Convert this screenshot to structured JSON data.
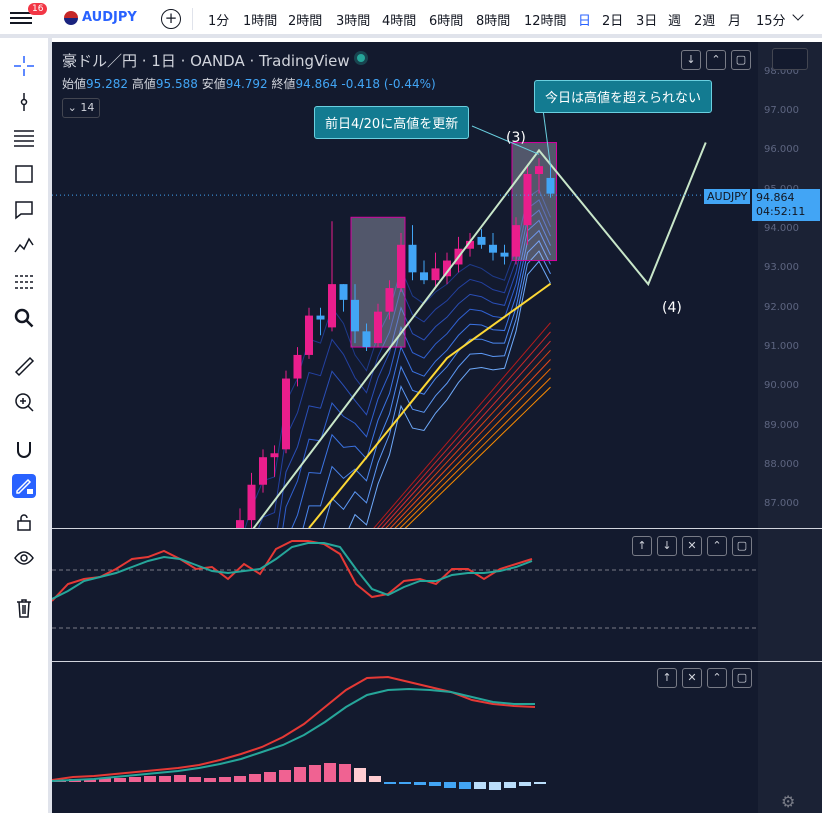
{
  "topbar": {
    "notification_count": "16",
    "symbol": "AUDJPY",
    "timeframes": [
      "1分",
      "1時間",
      "2時間",
      "3時間",
      "4時間",
      "6時間",
      "8時間",
      "12時間",
      "日",
      "2日",
      "3日",
      "週",
      "2週",
      "月",
      "15分"
    ],
    "active_timeframe": "日"
  },
  "header": {
    "title": "豪ドル／円 · 1日 · OANDA · TradingView",
    "open_label": "始値",
    "open": "95.282",
    "high_label": "高値",
    "high": "95.588",
    "low_label": "安値",
    "low": "94.792",
    "close_label": "終値",
    "close": "94.864",
    "change": "-0.418 (-0.44%)",
    "indicator_count": "14"
  },
  "annotations": {
    "callout_left": "前日4/20に高値を更新",
    "callout_right": "今日は高値を超えられない",
    "wave3": "(3)",
    "wave4": "(4)"
  },
  "price_tag": {
    "symbol": "AUDJPY",
    "price": "94.864",
    "countdown": "04:52:11"
  },
  "colors": {
    "background": "#131a2e",
    "up": "#e91e8c",
    "down": "#42a5f5",
    "accent": "#2962ff"
  },
  "chart_data": {
    "type": "candlestick",
    "ylim": [
      86.4,
      98.4
    ],
    "candles": [
      {
        "o": 86.2,
        "h": 86.9,
        "l": 85.9,
        "c": 86.6
      },
      {
        "o": 86.6,
        "h": 87.8,
        "l": 86.4,
        "c": 87.5
      },
      {
        "o": 87.5,
        "h": 88.4,
        "l": 87.3,
        "c": 88.2
      },
      {
        "o": 88.2,
        "h": 88.5,
        "l": 87.7,
        "c": 88.3
      },
      {
        "o": 88.4,
        "h": 90.4,
        "l": 88.3,
        "c": 90.2
      },
      {
        "o": 90.2,
        "h": 91.0,
        "l": 90.0,
        "c": 90.8
      },
      {
        "o": 90.8,
        "h": 92.0,
        "l": 90.7,
        "c": 91.8
      },
      {
        "o": 91.8,
        "h": 92.0,
        "l": 91.3,
        "c": 91.7
      },
      {
        "o": 91.5,
        "h": 94.2,
        "l": 91.4,
        "c": 92.6
      },
      {
        "o": 92.6,
        "h": 92.6,
        "l": 91.9,
        "c": 92.2
      },
      {
        "o": 92.2,
        "h": 92.6,
        "l": 91.1,
        "c": 91.4
      },
      {
        "o": 91.4,
        "h": 91.6,
        "l": 90.9,
        "c": 91.0
      },
      {
        "o": 91.1,
        "h": 92.1,
        "l": 91.0,
        "c": 91.9
      },
      {
        "o": 91.9,
        "h": 92.7,
        "l": 91.7,
        "c": 92.5
      },
      {
        "o": 92.5,
        "h": 93.9,
        "l": 92.4,
        "c": 93.6
      },
      {
        "o": 93.6,
        "h": 94.1,
        "l": 92.7,
        "c": 92.9
      },
      {
        "o": 92.9,
        "h": 93.2,
        "l": 92.6,
        "c": 92.7
      },
      {
        "o": 92.7,
        "h": 93.4,
        "l": 92.5,
        "c": 93.0
      },
      {
        "o": 92.8,
        "h": 93.4,
        "l": 92.6,
        "c": 93.2
      },
      {
        "o": 93.1,
        "h": 93.8,
        "l": 92.9,
        "c": 93.5
      },
      {
        "o": 93.5,
        "h": 93.9,
        "l": 93.3,
        "c": 93.7
      },
      {
        "o": 93.8,
        "h": 94.0,
        "l": 93.5,
        "c": 93.6
      },
      {
        "o": 93.6,
        "h": 93.9,
        "l": 93.2,
        "c": 93.4
      },
      {
        "o": 93.4,
        "h": 93.6,
        "l": 93.1,
        "c": 93.3
      },
      {
        "o": 93.3,
        "h": 94.3,
        "l": 93.1,
        "c": 94.1
      },
      {
        "o": 94.1,
        "h": 95.6,
        "l": 93.6,
        "c": 95.4
      },
      {
        "o": 95.4,
        "h": 95.8,
        "l": 94.9,
        "c": 95.6
      },
      {
        "o": 95.3,
        "h": 95.6,
        "l": 94.8,
        "c": 94.9
      }
    ],
    "forecast_line": [
      {
        "bar": -5,
        "price": 84.0
      },
      {
        "bar": 26,
        "price": 96.0
      },
      {
        "bar": 35.5,
        "price": 92.6
      },
      {
        "bar": 40.5,
        "price": 96.2
      }
    ],
    "y_ticks": [
      "98.000",
      "97.000",
      "96.000",
      "95.000",
      "94.000",
      "93.000",
      "92.000",
      "91.000",
      "90.000",
      "89.000",
      "88.000",
      "87.000"
    ]
  }
}
